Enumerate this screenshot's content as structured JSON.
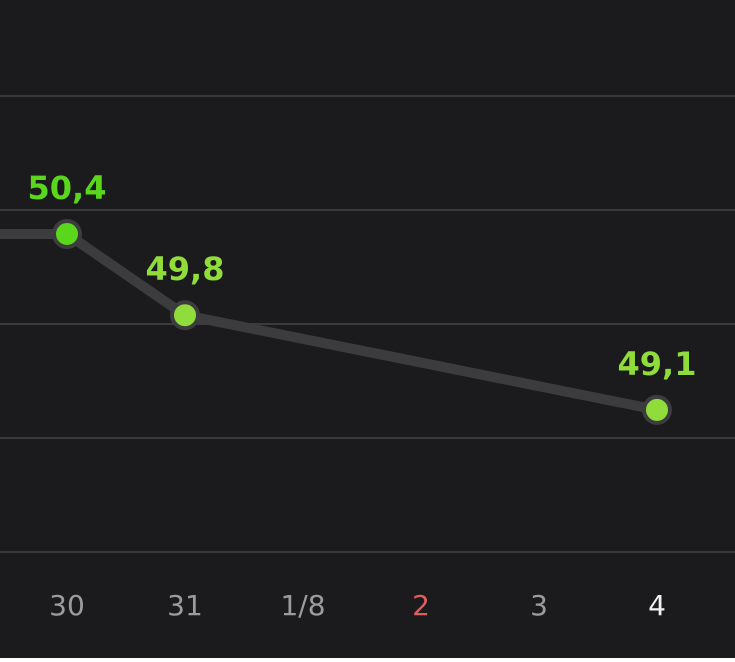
{
  "chart_data": {
    "type": "line",
    "categories": [
      null,
      "30",
      "31",
      "1/8",
      "2",
      "3",
      "4"
    ],
    "category_colors": [
      null,
      "#9c9c9c",
      "#9c9c9c",
      "#9c9c9c",
      "#e25c5c",
      "#9c9c9c",
      "#f0f0f0"
    ],
    "series": [
      {
        "color": "#3c3c3e",
        "point_colors": [
          null,
          "#5ad61c",
          "#8fdc3a",
          null,
          null,
          null,
          "#8fdc3a"
        ],
        "values": [
          50.4,
          50.4,
          49.8,
          null,
          null,
          null,
          49.1
        ],
        "value_labels": [
          null,
          "50,4",
          "49,8",
          null,
          null,
          null,
          "49,1"
        ]
      }
    ],
    "span_gaps": true,
    "ylim": [
      48.05,
      51.42
    ],
    "grid_lines": 5,
    "background": "#1b1b1d"
  }
}
